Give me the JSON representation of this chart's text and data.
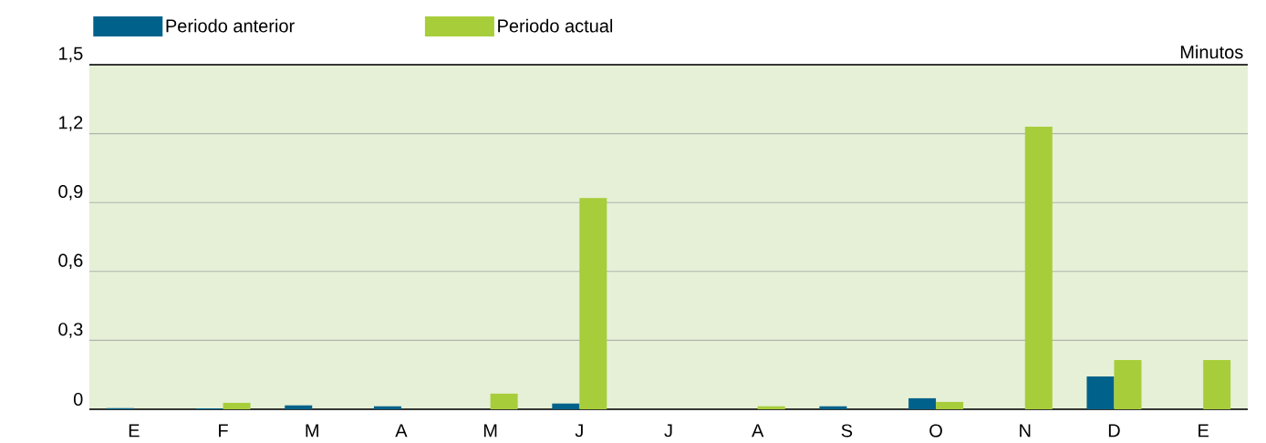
{
  "chart_data": {
    "type": "bar",
    "categories": [
      "E",
      "F",
      "M",
      "A",
      "M",
      "J",
      "J",
      "A",
      "S",
      "O",
      "N",
      "D",
      "E"
    ],
    "series": [
      {
        "name": "Periodo anterior",
        "color": "#00628b",
        "values": [
          0.005,
          0.004,
          0.017,
          0.013,
          0,
          0.025,
          0,
          0,
          0.013,
          0.048,
          0,
          0.143,
          0
        ]
      },
      {
        "name": "Periodo actual",
        "color": "#a7cd3a",
        "values": [
          0,
          0.028,
          0,
          0,
          0.068,
          0.92,
          0,
          0.013,
          0,
          0.032,
          1.23,
          0.214,
          0.214
        ]
      }
    ],
    "ylabel": "Minutos",
    "ylim": [
      0,
      1.5
    ],
    "yticks": [
      {
        "value": 0,
        "label": "0"
      },
      {
        "value": 0.3,
        "label": "0,3"
      },
      {
        "value": 0.6,
        "label": "0,6"
      },
      {
        "value": 0.9,
        "label": "0,9"
      },
      {
        "value": 1.2,
        "label": "1,2"
      },
      {
        "value": 1.5,
        "label": "1,5"
      }
    ],
    "grid": "y",
    "legend": "top left"
  }
}
